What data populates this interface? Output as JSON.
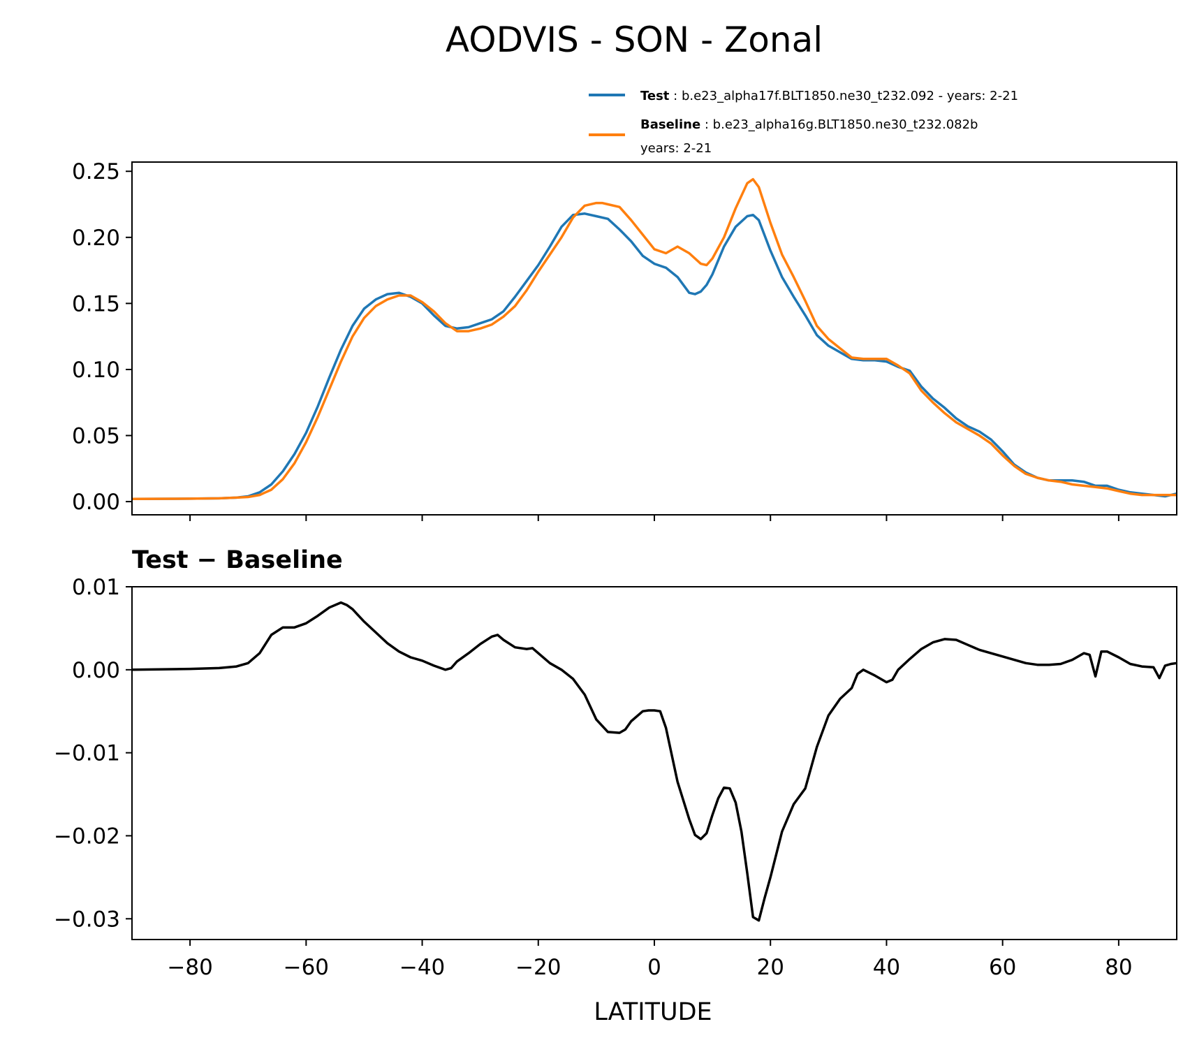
{
  "figure": {
    "title": "AODVIS - SON - Zonal",
    "xlabel": "LATITUDE"
  },
  "legend": {
    "test": {
      "name": "Test",
      "desc": ": b.e23_alpha17f.BLT1850.ne30_t232.092 - years: 2-21",
      "color": "#1f77b4"
    },
    "baseline": {
      "name": "Baseline",
      "desc": ": b.e23_alpha16g.BLT1850.ne30_t232.082b",
      "desc2": "years: 2-21",
      "color": "#ff7f0e"
    }
  },
  "diff_title": "Test − Baseline",
  "chart_data": [
    {
      "type": "line",
      "panel": "top",
      "xlim": [
        -90,
        90
      ],
      "ylim": [
        -0.01,
        0.257
      ],
      "xticks": [
        -80,
        -60,
        -40,
        -20,
        0,
        20,
        40,
        60,
        80
      ],
      "yticks": [
        0.0,
        0.05,
        0.1,
        0.15,
        0.2,
        0.25
      ],
      "ytick_labels": [
        "0.00",
        "0.05",
        "0.10",
        "0.15",
        "0.20",
        "0.25"
      ],
      "series": [
        {
          "name": "Test",
          "color": "#1f77b4",
          "x": [
            -90,
            -80,
            -75,
            -72,
            -70,
            -68,
            -66,
            -64,
            -62,
            -60,
            -58,
            -56,
            -54,
            -52,
            -50,
            -48,
            -46,
            -44,
            -42,
            -40,
            -38,
            -36,
            -34,
            -32,
            -30,
            -28,
            -26,
            -24,
            -22,
            -20,
            -18,
            -16,
            -14,
            -12,
            -10,
            -8,
            -6,
            -4,
            -2,
            0,
            2,
            4,
            6,
            7,
            8,
            9,
            10,
            12,
            14,
            16,
            17,
            18,
            20,
            22,
            24,
            26,
            28,
            30,
            32,
            34,
            36,
            38,
            40,
            42,
            44,
            46,
            48,
            50,
            52,
            54,
            56,
            58,
            60,
            62,
            64,
            66,
            68,
            70,
            72,
            74,
            76,
            78,
            80,
            82,
            84,
            86,
            88,
            90
          ],
          "values": [
            0.002,
            0.0022,
            0.0025,
            0.003,
            0.004,
            0.007,
            0.013,
            0.023,
            0.036,
            0.052,
            0.072,
            0.094,
            0.115,
            0.133,
            0.146,
            0.153,
            0.157,
            0.158,
            0.155,
            0.15,
            0.141,
            0.133,
            0.131,
            0.132,
            0.135,
            0.138,
            0.144,
            0.155,
            0.167,
            0.179,
            0.193,
            0.208,
            0.217,
            0.218,
            0.216,
            0.214,
            0.206,
            0.197,
            0.186,
            0.18,
            0.177,
            0.17,
            0.158,
            0.157,
            0.159,
            0.164,
            0.172,
            0.193,
            0.208,
            0.216,
            0.217,
            0.213,
            0.19,
            0.17,
            0.155,
            0.141,
            0.126,
            0.118,
            0.113,
            0.108,
            0.107,
            0.107,
            0.106,
            0.102,
            0.099,
            0.087,
            0.078,
            0.071,
            0.063,
            0.057,
            0.053,
            0.047,
            0.038,
            0.028,
            0.022,
            0.018,
            0.016,
            0.016,
            0.016,
            0.015,
            0.012,
            0.012,
            0.009,
            0.007,
            0.006,
            0.005,
            0.004,
            0.006
          ]
        },
        {
          "name": "Baseline",
          "color": "#ff7f0e",
          "x": [
            -90,
            -80,
            -75,
            -72,
            -70,
            -68,
            -66,
            -64,
            -62,
            -60,
            -58,
            -56,
            -54,
            -52,
            -50,
            -48,
            -46,
            -44,
            -42,
            -40,
            -38,
            -36,
            -34,
            -32,
            -30,
            -28,
            -26,
            -24,
            -22,
            -20,
            -18,
            -16,
            -14,
            -12,
            -10,
            -9,
            -8,
            -6,
            -4,
            -2,
            0,
            2,
            4,
            6,
            8,
            9,
            10,
            12,
            14,
            16,
            17,
            18,
            20,
            22,
            24,
            26,
            28,
            30,
            32,
            34,
            36,
            38,
            40,
            42,
            44,
            46,
            48,
            50,
            52,
            54,
            56,
            58,
            60,
            62,
            64,
            66,
            68,
            70,
            72,
            74,
            76,
            78,
            80,
            82,
            84,
            86,
            88,
            90
          ],
          "values": [
            0.002,
            0.0022,
            0.0025,
            0.003,
            0.0035,
            0.005,
            0.009,
            0.017,
            0.029,
            0.045,
            0.064,
            0.085,
            0.106,
            0.125,
            0.139,
            0.148,
            0.153,
            0.156,
            0.156,
            0.151,
            0.144,
            0.135,
            0.129,
            0.129,
            0.131,
            0.134,
            0.14,
            0.148,
            0.16,
            0.174,
            0.187,
            0.2,
            0.215,
            0.224,
            0.226,
            0.226,
            0.225,
            0.223,
            0.213,
            0.202,
            0.191,
            0.188,
            0.193,
            0.188,
            0.18,
            0.179,
            0.184,
            0.2,
            0.222,
            0.241,
            0.244,
            0.238,
            0.211,
            0.187,
            0.17,
            0.152,
            0.133,
            0.123,
            0.116,
            0.109,
            0.108,
            0.108,
            0.108,
            0.103,
            0.097,
            0.084,
            0.075,
            0.067,
            0.06,
            0.055,
            0.05,
            0.044,
            0.035,
            0.027,
            0.021,
            0.018,
            0.016,
            0.015,
            0.013,
            0.012,
            0.011,
            0.01,
            0.008,
            0.006,
            0.005,
            0.005,
            0.005,
            0.005
          ]
        }
      ]
    },
    {
      "type": "line",
      "panel": "bottom",
      "title": "Test − Baseline",
      "xlabel": "LATITUDE",
      "xlim": [
        -90,
        90
      ],
      "ylim": [
        -0.0325,
        0.01
      ],
      "xticks": [
        -80,
        -60,
        -40,
        -20,
        0,
        20,
        40,
        60,
        80
      ],
      "xtick_labels": [
        "−80",
        "−60",
        "−40",
        "−20",
        "0",
        "20",
        "40",
        "60",
        "80"
      ],
      "yticks": [
        0.01,
        0.0,
        -0.01,
        -0.02,
        -0.03
      ],
      "ytick_labels": [
        "0.01",
        "0.00",
        "−0.01",
        "−0.02",
        "−0.03"
      ],
      "series": [
        {
          "name": "Test − Baseline",
          "color": "#000000",
          "x": [
            -90,
            -80,
            -75,
            -72,
            -70,
            -68,
            -66,
            -64,
            -62,
            -60,
            -58,
            -56,
            -54,
            -53,
            -52,
            -50,
            -48,
            -46,
            -44,
            -42,
            -40,
            -38,
            -36,
            -35,
            -34,
            -32,
            -30,
            -28,
            -27,
            -26,
            -24,
            -22,
            -21,
            -20,
            -18,
            -16,
            -14,
            -12,
            -10,
            -8,
            -6,
            -5,
            -4,
            -2,
            -1,
            0,
            1,
            2,
            4,
            6,
            7,
            8,
            9,
            10,
            11,
            12,
            13,
            14,
            15,
            16,
            17,
            18,
            19,
            20,
            22,
            24,
            26,
            28,
            30,
            32,
            34,
            35,
            36,
            38,
            40,
            41,
            42,
            44,
            46,
            48,
            50,
            52,
            54,
            56,
            58,
            60,
            62,
            64,
            66,
            68,
            70,
            72,
            74,
            75,
            76,
            77,
            78,
            80,
            82,
            84,
            86,
            87,
            88,
            89,
            90
          ],
          "values": [
            0.0,
            0.0001,
            0.0002,
            0.0004,
            0.0008,
            0.002,
            0.0042,
            0.0051,
            0.0051,
            0.0056,
            0.0065,
            0.0075,
            0.0081,
            0.0078,
            0.0073,
            0.0058,
            0.0045,
            0.0032,
            0.0022,
            0.0015,
            0.0011,
            0.0005,
            0.0,
            0.0002,
            0.001,
            0.002,
            0.0031,
            0.004,
            0.0042,
            0.0036,
            0.0027,
            0.0025,
            0.0026,
            0.002,
            0.0008,
            0.0,
            -0.0011,
            -0.003,
            -0.006,
            -0.0075,
            -0.0076,
            -0.0072,
            -0.0062,
            -0.005,
            -0.0049,
            -0.0049,
            -0.005,
            -0.007,
            -0.0135,
            -0.018,
            -0.0199,
            -0.0204,
            -0.0197,
            -0.0175,
            -0.0155,
            -0.0142,
            -0.0143,
            -0.016,
            -0.0195,
            -0.0245,
            -0.0298,
            -0.0302,
            -0.0275,
            -0.025,
            -0.0195,
            -0.0162,
            -0.0143,
            -0.0093,
            -0.0055,
            -0.0035,
            -0.0022,
            -0.0005,
            0.0,
            -0.0007,
            -0.0015,
            -0.0012,
            0.0,
            0.0013,
            0.0025,
            0.0033,
            0.0037,
            0.0036,
            0.003,
            0.0024,
            0.002,
            0.0016,
            0.0012,
            0.0008,
            0.0006,
            0.0006,
            0.0007,
            0.0012,
            0.002,
            0.0018,
            -0.0008,
            0.0022,
            0.0022,
            0.0015,
            0.0007,
            0.0004,
            0.0003,
            -0.001,
            0.0005,
            0.0007,
            0.0008
          ]
        }
      ]
    }
  ]
}
